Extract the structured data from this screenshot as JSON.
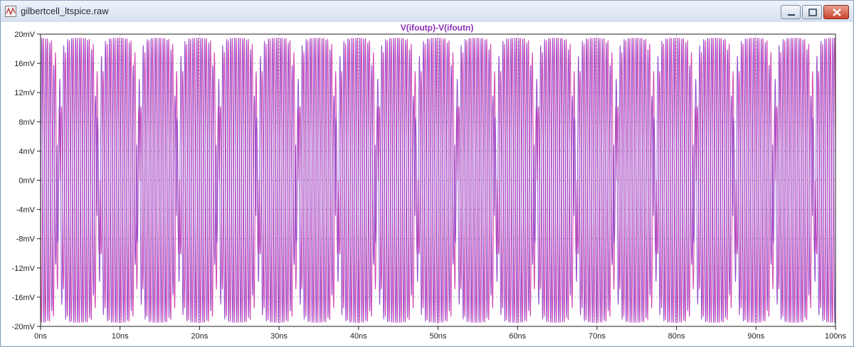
{
  "window": {
    "title": "gilbertcell_ltspice.raw",
    "icons": {
      "app": "waveform-file-icon",
      "minimize": "minimize-icon",
      "maximize": "maximize-icon",
      "close": "close-icon"
    }
  },
  "colors": {
    "trace_a": "#cc33aa",
    "trace_b": "#8a3cc8",
    "title": "#8a2fb4",
    "grid": "#a8a8a8",
    "axis": "#222222"
  },
  "chart_data": {
    "type": "line",
    "title": "V(ifoutp)-V(ifoutn)",
    "xlabel": "",
    "ylabel": "",
    "x_unit": "ns",
    "y_unit": "mV",
    "xlim": [
      0,
      100
    ],
    "ylim": [
      -20,
      20
    ],
    "x_ticks": [
      "0ns",
      "10ns",
      "20ns",
      "30ns",
      "40ns",
      "50ns",
      "60ns",
      "70ns",
      "80ns",
      "90ns",
      "100ns"
    ],
    "y_ticks": [
      "20mV",
      "16mV",
      "12mV",
      "8mV",
      "4mV",
      "0mV",
      "-4mV",
      "-8mV",
      "-12mV",
      "-16mV",
      "-20mV"
    ],
    "grid": true,
    "legend": "none",
    "series": [
      {
        "carrier_period_ns": 0.5,
        "envelope_period_ns": 10,
        "amplitude_mV": 19.5,
        "color": "#cc33aa"
      },
      {
        "carrier_period_ns": 0.5,
        "envelope_period_ns": 10,
        "amplitude_mV": 19.5,
        "color": "#8a3cc8"
      }
    ]
  }
}
